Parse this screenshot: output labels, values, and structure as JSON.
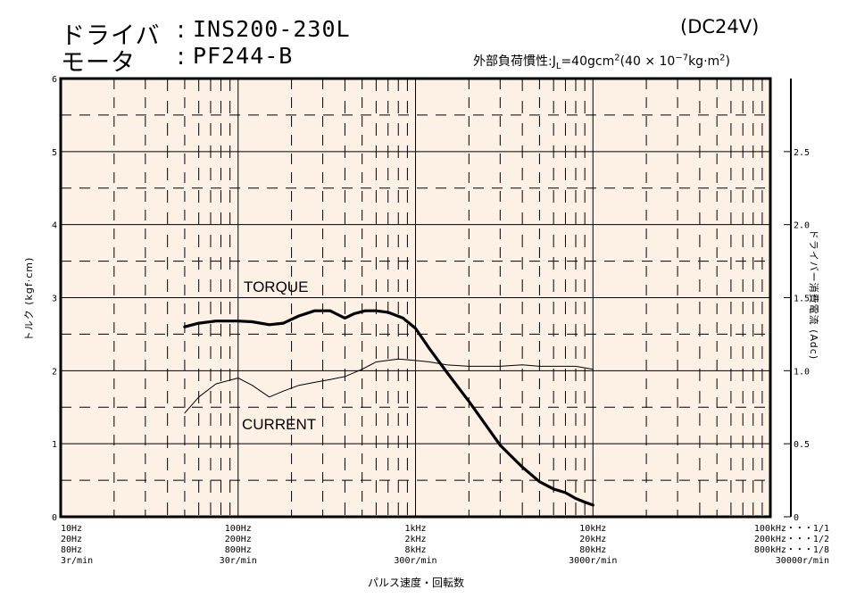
{
  "header": {
    "driver_label": "ドライバ",
    "driver_sep": ":",
    "driver_value": "INS200-230L",
    "motor_label": "モータ",
    "motor_sep": ":",
    "motor_value": "PF244-B",
    "voltage": "(DC24V)",
    "inertia_prefix": "外部負荷慣性:",
    "inertia_sym": "J",
    "inertia_sub": "L",
    "inertia_value": "=40gcm",
    "inertia_exp": "2",
    "inertia_paren_open": "(40 × 10",
    "inertia_paren_exp": "−7",
    "inertia_paren_unit": "kg·m",
    "inertia_paren_exp2": "2",
    "inertia_paren_close": ")"
  },
  "chart_data": {
    "type": "line",
    "x_scale": "log",
    "xlim": [
      10,
      100000
    ],
    "ylim": [
      0,
      6
    ],
    "y2lim": [
      0,
      3
    ],
    "grid": true,
    "ylabel": "トルク (kgf·cm)",
    "y2label": "ドライバー消費電流 (Adc)",
    "xlabel": "パルス速度・回転数",
    "y_ticks": [
      "0",
      "1",
      "2",
      "3",
      "4",
      "5",
      "6"
    ],
    "y2_ticks": [
      "0",
      "0.5",
      "1.0",
      "1.5",
      "2.0",
      "2.5"
    ],
    "x_ticks": [
      {
        "x": 10,
        "lines": [
          "10Hz",
          "20Hz",
          "80Hz",
          "3r/min"
        ]
      },
      {
        "x": 100,
        "lines": [
          "100Hz",
          "200Hz",
          "800Hz",
          "30r/min"
        ]
      },
      {
        "x": 1000,
        "lines": [
          "1kHz",
          "2kHz",
          "8kHz",
          "300r/min"
        ]
      },
      {
        "x": 10000,
        "lines": [
          "10kHz",
          "20kHz",
          "80kHz",
          "3000r/min"
        ]
      },
      {
        "x": 100000,
        "lines": [
          "100kHz・・・1/1",
          "200kHz・・・1/2",
          "800kHz・・・1/8",
          "30000r/min"
        ]
      }
    ],
    "series": [
      {
        "name": "TORQUE",
        "axis": "left",
        "color": "#000000",
        "x": [
          50,
          60,
          75,
          100,
          120,
          150,
          180,
          220,
          270,
          330,
          400,
          450,
          520,
          600,
          700,
          850,
          1000,
          1200,
          1500,
          2000,
          2500,
          3000,
          4000,
          5000,
          6000,
          7000,
          8000,
          9000,
          10000
        ],
        "y": [
          2.6,
          2.65,
          2.68,
          2.68,
          2.67,
          2.63,
          2.65,
          2.75,
          2.82,
          2.82,
          2.72,
          2.78,
          2.82,
          2.82,
          2.8,
          2.72,
          2.58,
          2.3,
          1.98,
          1.58,
          1.25,
          0.98,
          0.68,
          0.48,
          0.38,
          0.33,
          0.25,
          0.2,
          0.16
        ]
      },
      {
        "name": "CURRENT",
        "axis": "right",
        "color": "#000000",
        "x": [
          50,
          60,
          75,
          100,
          120,
          150,
          180,
          220,
          270,
          330,
          400,
          500,
          600,
          800,
          1000,
          1200,
          1500,
          2000,
          3000,
          4000,
          5000,
          6000,
          8000,
          10000
        ],
        "y": [
          0.71,
          0.82,
          0.91,
          0.95,
          0.9,
          0.82,
          0.86,
          0.9,
          0.92,
          0.94,
          0.96,
          1.01,
          1.06,
          1.08,
          1.07,
          1.06,
          1.04,
          1.03,
          1.03,
          1.04,
          1.03,
          1.03,
          1.03,
          1.01
        ]
      }
    ]
  }
}
